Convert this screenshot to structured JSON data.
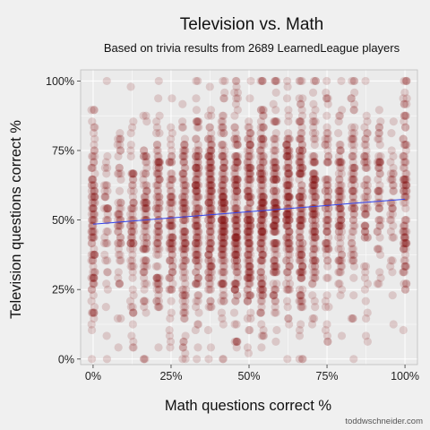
{
  "chart_data": {
    "type": "scatter",
    "title": "Television vs. Math",
    "subtitle": "Based on trivia results from 2689 LearnedLeague players",
    "xlabel": "Math questions correct %",
    "ylabel": "Television questions correct %",
    "xlim": [
      -0.04,
      1.04
    ],
    "ylim": [
      -0.02,
      1.04
    ],
    "x_ticks": [
      0,
      0.25,
      0.5,
      0.75,
      1.0
    ],
    "x_tick_labels": [
      "0%",
      "25%",
      "50%",
      "75%",
      "100%"
    ],
    "y_ticks": [
      0,
      0.25,
      0.5,
      0.75,
      1.0
    ],
    "y_tick_labels": [
      "0%",
      "25%",
      "50%",
      "75%",
      "100%"
    ],
    "grid": true,
    "point_count": 2689,
    "point_color": "#8b1a1a",
    "point_opacity": 0.17,
    "trend_line": {
      "x": [
        0,
        1
      ],
      "y": [
        0.485,
        0.575
      ],
      "color": "#3344ee"
    },
    "credit": "toddwschneider.com"
  },
  "colors": {
    "background": "#f0f0f0",
    "panel": "#ebebeb",
    "grid": "#ffffff",
    "axis_frame": "#bdbdbd"
  }
}
